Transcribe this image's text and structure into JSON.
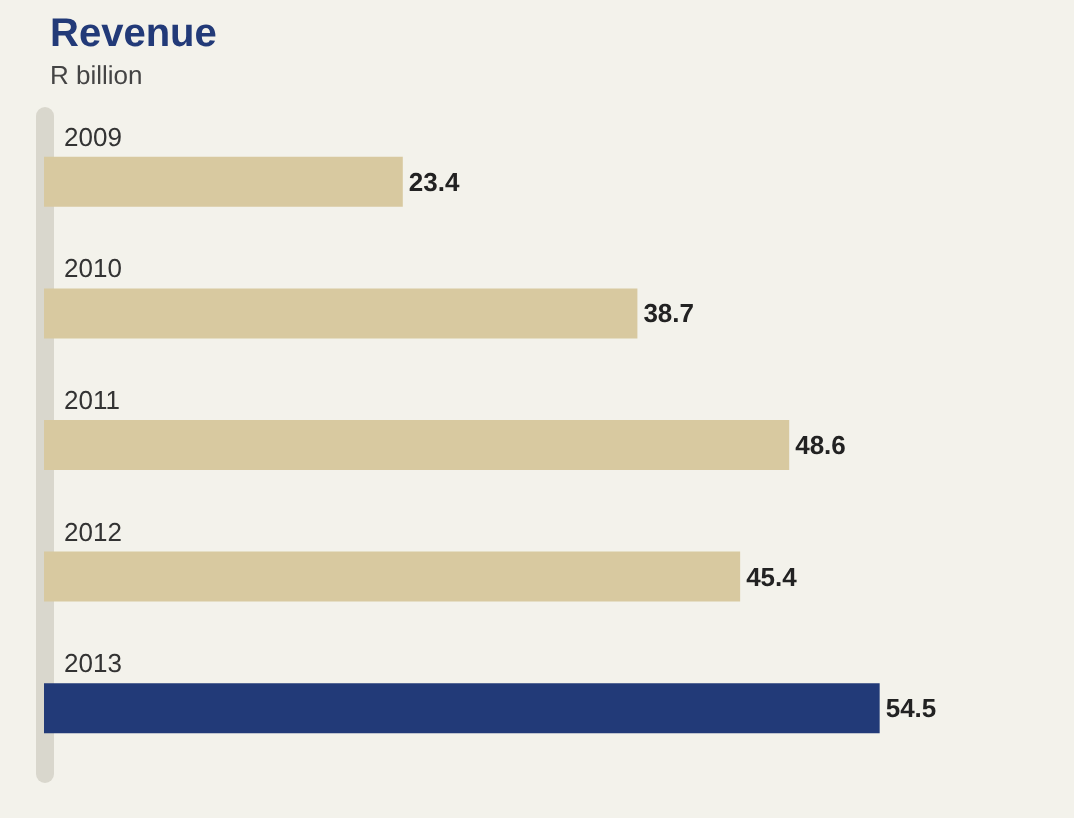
{
  "chart_data": {
    "type": "bar",
    "orientation": "horizontal",
    "title": "Revenue",
    "subtitle": "R billion",
    "categories": [
      "2009",
      "2010",
      "2011",
      "2012",
      "2013"
    ],
    "values": [
      23.4,
      38.7,
      48.6,
      45.4,
      54.5
    ],
    "colors": [
      "#d8c9a0",
      "#d8c9a0",
      "#d8c9a0",
      "#d8c9a0",
      "#223a78"
    ],
    "data_labels": true
  }
}
